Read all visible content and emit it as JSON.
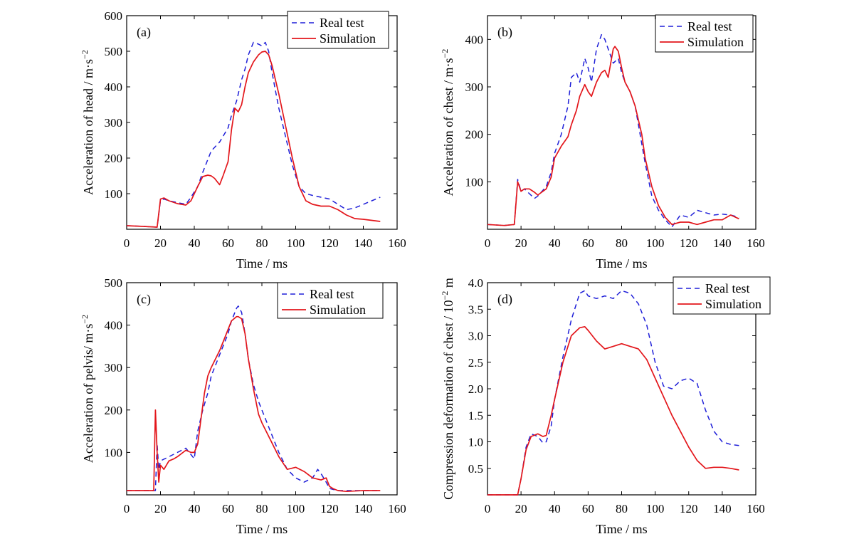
{
  "colors": {
    "real_test": "#1f1fd8",
    "simulation": "#e3161b",
    "axis": "#000000"
  },
  "chart_data": [
    {
      "type": "line",
      "panel": "(a)",
      "xlabel": "Time / ms",
      "ylabel": "Acceleration of head / m·s",
      "ylabel_sup": "−2",
      "xlim": [
        0,
        160
      ],
      "ylim": [
        0,
        600
      ],
      "xticks": [
        0,
        20,
        40,
        60,
        80,
        100,
        120,
        140,
        160
      ],
      "yticks": [
        100,
        200,
        300,
        400,
        500,
        600
      ],
      "legend": "top-right",
      "series": [
        {
          "name": "Real test",
          "style": "dashed",
          "x": [
            0,
            10,
            18,
            20,
            22,
            25,
            30,
            35,
            38,
            42,
            45,
            50,
            55,
            60,
            62,
            65,
            68,
            70,
            72,
            75,
            78,
            80,
            82,
            84,
            86,
            88,
            90,
            94,
            98,
            102,
            106,
            110,
            115,
            120,
            125,
            130,
            135,
            140,
            145,
            150
          ],
          "y": [
            10,
            8,
            6,
            80,
            85,
            80,
            75,
            70,
            90,
            120,
            160,
            220,
            245,
            285,
            320,
            360,
            420,
            450,
            490,
            525,
            520,
            515,
            525,
            500,
            440,
            390,
            340,
            260,
            180,
            120,
            100,
            95,
            90,
            85,
            70,
            55,
            60,
            70,
            80,
            90
          ]
        },
        {
          "name": "Simulation",
          "style": "solid",
          "x": [
            0,
            10,
            18,
            20,
            22,
            25,
            30,
            35,
            38,
            42,
            45,
            48,
            50,
            52,
            55,
            57,
            60,
            62,
            64,
            66,
            68,
            70,
            72,
            75,
            78,
            80,
            82,
            84,
            86,
            88,
            90,
            94,
            98,
            102,
            106,
            110,
            115,
            120,
            125,
            130,
            135,
            140,
            145,
            150
          ],
          "y": [
            10,
            8,
            6,
            85,
            88,
            80,
            72,
            68,
            80,
            120,
            148,
            152,
            150,
            143,
            125,
            150,
            190,
            280,
            340,
            330,
            350,
            400,
            440,
            470,
            490,
            498,
            500,
            490,
            460,
            420,
            380,
            290,
            200,
            120,
            80,
            70,
            65,
            65,
            55,
            40,
            30,
            28,
            25,
            22
          ]
        }
      ]
    },
    {
      "type": "line",
      "panel": "(b)",
      "xlabel": "Time / ms",
      "ylabel": "Acceleration of chest / m·s",
      "ylabel_sup": "−2",
      "xlim": [
        0,
        160
      ],
      "ylim": [
        0,
        450
      ],
      "xticks": [
        0,
        20,
        40,
        60,
        80,
        100,
        120,
        140,
        160
      ],
      "yticks": [
        100,
        200,
        300,
        400
      ],
      "legend": "top-right",
      "series": [
        {
          "name": "Real test",
          "style": "dashed",
          "x": [
            0,
            10,
            16,
            18,
            20,
            22,
            25,
            28,
            30,
            35,
            38,
            40,
            44,
            48,
            50,
            53,
            55,
            58,
            60,
            62,
            65,
            68,
            70,
            72,
            75,
            78,
            80,
            82,
            85,
            88,
            90,
            94,
            98,
            102,
            106,
            110,
            115,
            120,
            125,
            130,
            135,
            140,
            145,
            150
          ],
          "y": [
            10,
            8,
            10,
            105,
            80,
            85,
            75,
            65,
            70,
            90,
            120,
            160,
            200,
            260,
            320,
            330,
            310,
            360,
            340,
            310,
            380,
            410,
            400,
            380,
            350,
            360,
            330,
            310,
            290,
            260,
            220,
            140,
            70,
            40,
            20,
            5,
            30,
            25,
            40,
            35,
            30,
            32,
            30,
            25
          ]
        },
        {
          "name": "Simulation",
          "style": "solid",
          "x": [
            0,
            10,
            16,
            18,
            20,
            22,
            25,
            28,
            30,
            35,
            38,
            40,
            44,
            48,
            50,
            53,
            55,
            58,
            60,
            62,
            65,
            68,
            70,
            72,
            75,
            76,
            78,
            80,
            82,
            85,
            88,
            90,
            92,
            94,
            98,
            102,
            106,
            110,
            115,
            120,
            125,
            130,
            135,
            140,
            145,
            150
          ],
          "y": [
            10,
            8,
            10,
            100,
            80,
            85,
            85,
            78,
            72,
            85,
            110,
            150,
            175,
            195,
            220,
            250,
            280,
            305,
            290,
            280,
            310,
            330,
            335,
            320,
            380,
            385,
            375,
            340,
            310,
            290,
            260,
            230,
            200,
            150,
            90,
            50,
            25,
            10,
            15,
            15,
            10,
            15,
            20,
            20,
            30,
            22
          ]
        }
      ]
    },
    {
      "type": "line",
      "panel": "(c)",
      "xlabel": "Time / ms",
      "ylabel": "Acceleration of pelvis/ m·s",
      "ylabel_sup": "−2",
      "xlim": [
        0,
        160
      ],
      "ylim": [
        0,
        500
      ],
      "xticks": [
        0,
        20,
        40,
        60,
        80,
        100,
        120,
        140,
        160
      ],
      "yticks": [
        100,
        200,
        300,
        400,
        500
      ],
      "legend": "top-right",
      "series": [
        {
          "name": "Real test",
          "style": "dashed",
          "x": [
            0,
            10,
            16,
            17,
            18,
            19,
            20,
            25,
            30,
            35,
            38,
            40,
            42,
            45,
            48,
            50,
            55,
            60,
            62,
            65,
            66,
            68,
            70,
            72,
            75,
            78,
            80,
            85,
            90,
            95,
            100,
            105,
            110,
            113,
            115,
            118,
            120,
            125,
            130,
            140,
            150
          ],
          "y": [
            10,
            10,
            10,
            10,
            120,
            60,
            80,
            90,
            100,
            110,
            95,
            85,
            150,
            200,
            240,
            280,
            330,
            380,
            410,
            440,
            445,
            430,
            380,
            320,
            260,
            220,
            200,
            150,
            100,
            60,
            40,
            30,
            40,
            60,
            50,
            30,
            15,
            10,
            10,
            10,
            10
          ]
        },
        {
          "name": "Simulation",
          "style": "solid",
          "x": [
            0,
            10,
            16,
            17,
            18,
            19,
            20,
            22,
            25,
            28,
            30,
            35,
            38,
            40,
            42,
            44,
            46,
            48,
            50,
            55,
            58,
            60,
            62,
            65,
            66,
            68,
            70,
            72,
            75,
            78,
            80,
            85,
            90,
            95,
            100,
            105,
            110,
            115,
            118,
            120,
            122,
            125,
            130,
            140,
            150
          ],
          "y": [
            10,
            10,
            10,
            200,
            100,
            30,
            70,
            60,
            80,
            85,
            90,
            105,
            100,
            100,
            120,
            180,
            240,
            280,
            300,
            340,
            370,
            390,
            410,
            420,
            420,
            415,
            380,
            320,
            250,
            190,
            170,
            130,
            90,
            60,
            65,
            55,
            40,
            35,
            40,
            20,
            15,
            10,
            8,
            10,
            10
          ]
        }
      ]
    },
    {
      "type": "line",
      "panel": "(d)",
      "xlabel": "Time / ms",
      "ylabel": "Compression deformation of chest / 10",
      "ylabel_sup": "−2",
      "ylabel_unit": " m",
      "xlim": [
        0,
        160
      ],
      "ylim": [
        0,
        4.0
      ],
      "xticks": [
        0,
        20,
        40,
        60,
        80,
        100,
        120,
        140,
        160
      ],
      "yticks": [
        0.5,
        1.0,
        1.5,
        2.0,
        2.5,
        3.0,
        3.5,
        4.0
      ],
      "ytick_labels": [
        "0.5",
        "1.0",
        "1.5",
        "2.0",
        "2.5",
        "3.0",
        "3.5",
        "4.0"
      ],
      "legend": "top-right",
      "series": [
        {
          "name": "Real test",
          "style": "dashed",
          "x": [
            0,
            18,
            20,
            23,
            26,
            30,
            33,
            35,
            38,
            40,
            45,
            50,
            55,
            58,
            60,
            65,
            70,
            75,
            80,
            85,
            90,
            95,
            100,
            105,
            110,
            115,
            120,
            125,
            130,
            135,
            140,
            145,
            150
          ],
          "y": [
            0,
            0,
            0.3,
            0.9,
            1.15,
            1.1,
            0.98,
            1.0,
            1.3,
            1.8,
            2.6,
            3.3,
            3.8,
            3.85,
            3.75,
            3.7,
            3.75,
            3.7,
            3.85,
            3.8,
            3.6,
            3.2,
            2.5,
            2.05,
            2.0,
            2.15,
            2.2,
            2.1,
            1.6,
            1.2,
            1.0,
            0.95,
            0.93
          ]
        },
        {
          "name": "Simulation",
          "style": "solid",
          "x": [
            0,
            18,
            20,
            23,
            26,
            30,
            33,
            35,
            38,
            40,
            45,
            50,
            55,
            58,
            60,
            65,
            70,
            75,
            80,
            85,
            90,
            95,
            100,
            110,
            120,
            125,
            130,
            135,
            140,
            145,
            150
          ],
          "y": [
            0,
            0,
            0.3,
            0.85,
            1.1,
            1.15,
            1.1,
            1.12,
            1.5,
            1.8,
            2.5,
            3.0,
            3.15,
            3.17,
            3.1,
            2.9,
            2.75,
            2.8,
            2.85,
            2.8,
            2.75,
            2.55,
            2.2,
            1.5,
            0.9,
            0.65,
            0.5,
            0.52,
            0.52,
            0.5,
            0.47
          ]
        }
      ]
    }
  ]
}
